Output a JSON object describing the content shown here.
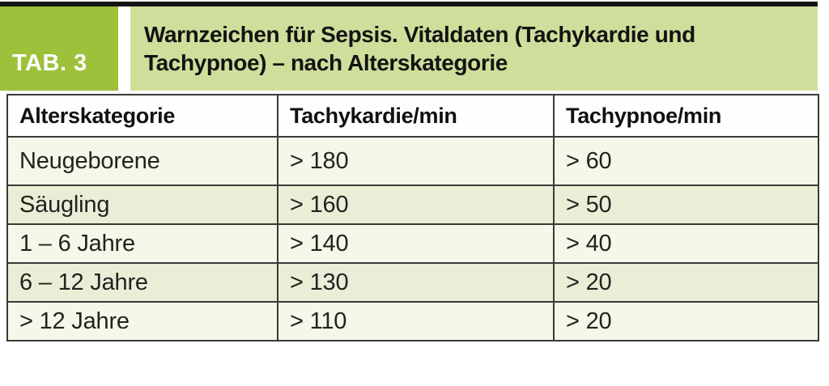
{
  "header": {
    "tab_label": "TAB. 3",
    "title": "Warnzeichen für Sepsis. Vitaldaten (Tachykardie und Tachypnoe) – nach Alterskategorie"
  },
  "table": {
    "columns": [
      "Alterskategorie",
      "Tachykardie/min",
      "Tachypnoe/min"
    ],
    "rows": [
      [
        "Neugeborene",
        "> 180",
        "> 60"
      ],
      [
        "Säugling",
        "> 160",
        "> 50"
      ],
      [
        "1 – 6 Jahre",
        "> 140",
        "> 40"
      ],
      [
        "6 – 12 Jahre",
        "> 130",
        "> 20"
      ],
      [
        "> 12 Jahre",
        "> 110",
        "> 20"
      ]
    ]
  },
  "colors": {
    "badge_green": "#9dc13a",
    "title_band_green": "#cfdf9b",
    "row_cream": "#f5f7e8",
    "row_light_green": "#e9efd7",
    "header_row_white": "#fefefe",
    "border_gray": "#3a3a38",
    "top_rule_black": "#141414"
  }
}
